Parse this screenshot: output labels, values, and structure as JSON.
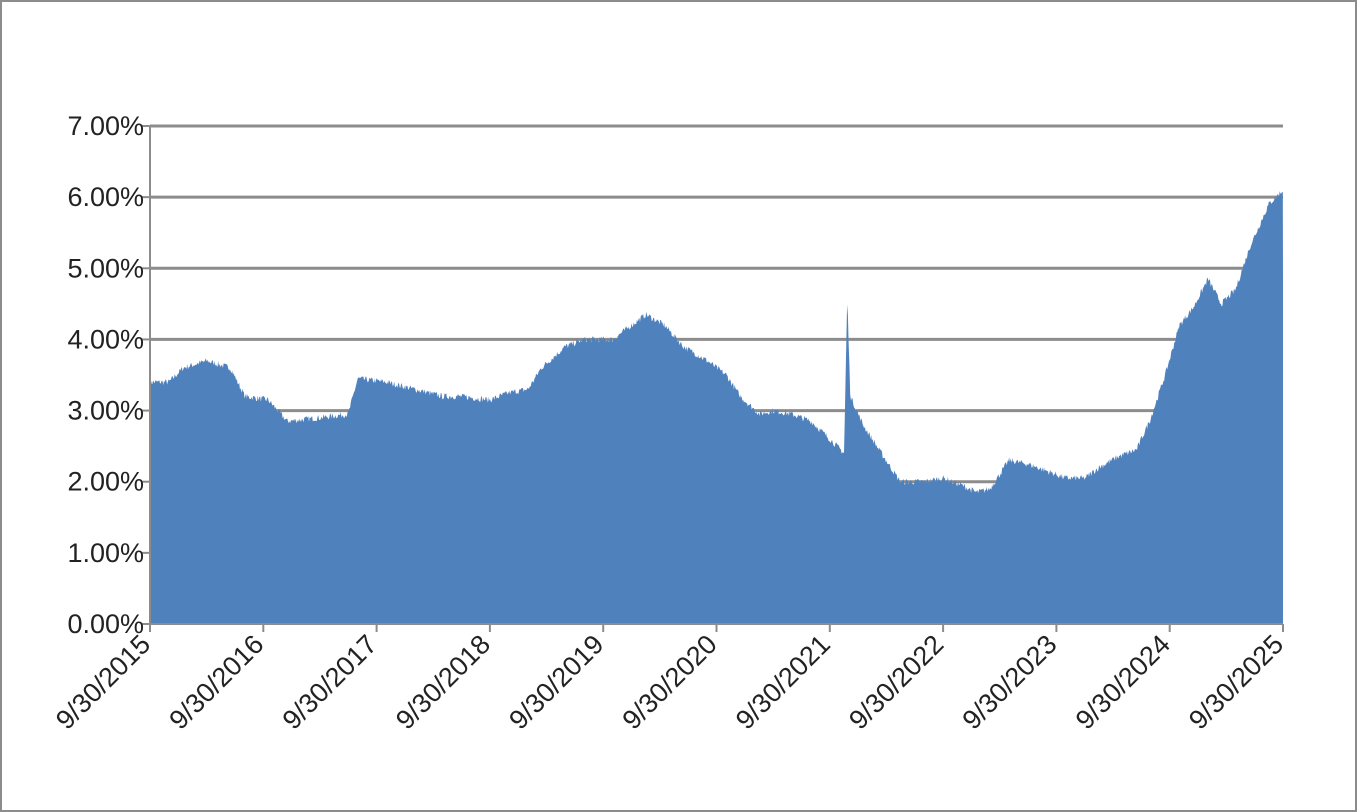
{
  "chart_data": {
    "type": "area",
    "title": "",
    "xlabel": "",
    "ylabel": "",
    "ylim": [
      0,
      7
    ],
    "grid": true,
    "legend": "none",
    "y_ticks": [
      "0.00%",
      "1.00%",
      "2.00%",
      "3.00%",
      "4.00%",
      "5.00%",
      "6.00%",
      "7.00%"
    ],
    "x_ticks": [
      "9/30/2015",
      "9/30/2016",
      "9/30/2017",
      "9/30/2018",
      "9/30/2019",
      "9/30/2020",
      "9/30/2021",
      "9/30/2022",
      "9/30/2023",
      "9/30/2024",
      "9/30/2025"
    ],
    "x_range": [
      "2015-09-30",
      "2025-09-30"
    ],
    "y_unit": "%",
    "colors": {
      "fill": "#4f81bd",
      "grid": "#8c8c8c",
      "axis": "#8c8c8c"
    },
    "series": [
      {
        "values": [
          [
            "2015-09-30",
            3.4
          ],
          [
            "2015-11-30",
            3.4
          ],
          [
            "2016-01-15",
            3.6
          ],
          [
            "2016-03-31",
            3.7
          ],
          [
            "2016-06-15",
            3.6
          ],
          [
            "2016-08-01",
            3.2
          ],
          [
            "2016-10-15",
            3.15
          ],
          [
            "2016-12-15",
            2.85
          ],
          [
            "2017-03-31",
            2.9
          ],
          [
            "2017-06-30",
            2.95
          ],
          [
            "2017-07-31",
            3.45
          ],
          [
            "2017-10-31",
            3.4
          ],
          [
            "2018-01-31",
            3.3
          ],
          [
            "2018-04-30",
            3.2
          ],
          [
            "2018-06-30",
            3.2
          ],
          [
            "2018-09-30",
            3.15
          ],
          [
            "2018-11-30",
            3.25
          ],
          [
            "2019-01-31",
            3.3
          ],
          [
            "2019-03-15",
            3.6
          ],
          [
            "2019-05-31",
            3.9
          ],
          [
            "2019-07-31",
            4.0
          ],
          [
            "2019-10-31",
            4.0
          ],
          [
            "2019-12-31",
            4.2
          ],
          [
            "2020-02-15",
            4.35
          ],
          [
            "2020-04-15",
            4.2
          ],
          [
            "2020-06-15",
            3.9
          ],
          [
            "2020-08-31",
            3.7
          ],
          [
            "2020-10-31",
            3.5
          ],
          [
            "2020-12-15",
            3.2
          ],
          [
            "2021-02-15",
            2.95
          ],
          [
            "2021-03-31",
            3.0
          ],
          [
            "2021-05-31",
            2.95
          ],
          [
            "2021-07-31",
            2.85
          ],
          [
            "2021-09-30",
            2.6
          ],
          [
            "2021-11-15",
            2.4
          ],
          [
            "2021-11-25",
            4.6
          ],
          [
            "2021-12-05",
            3.2
          ],
          [
            "2022-01-15",
            2.8
          ],
          [
            "2022-03-15",
            2.4
          ],
          [
            "2022-05-15",
            2.0
          ],
          [
            "2022-07-31",
            2.0
          ],
          [
            "2022-09-30",
            2.05
          ],
          [
            "2022-11-30",
            1.95
          ],
          [
            "2023-01-15",
            1.85
          ],
          [
            "2023-02-28",
            1.9
          ],
          [
            "2023-03-31",
            2.1
          ],
          [
            "2023-04-30",
            2.3
          ],
          [
            "2023-06-30",
            2.25
          ],
          [
            "2023-08-31",
            2.15
          ],
          [
            "2023-10-31",
            2.05
          ],
          [
            "2023-12-31",
            2.05
          ],
          [
            "2024-02-15",
            2.2
          ],
          [
            "2024-04-15",
            2.35
          ],
          [
            "2024-06-15",
            2.45
          ],
          [
            "2024-07-31",
            2.9
          ],
          [
            "2024-09-15",
            3.5
          ],
          [
            "2024-10-31",
            4.2
          ],
          [
            "2024-12-15",
            4.45
          ],
          [
            "2025-01-31",
            4.85
          ],
          [
            "2025-03-15",
            4.5
          ],
          [
            "2025-04-30",
            4.7
          ],
          [
            "2025-06-15",
            5.3
          ],
          [
            "2025-08-15",
            5.9
          ],
          [
            "2025-09-30",
            6.1
          ]
        ]
      }
    ]
  }
}
